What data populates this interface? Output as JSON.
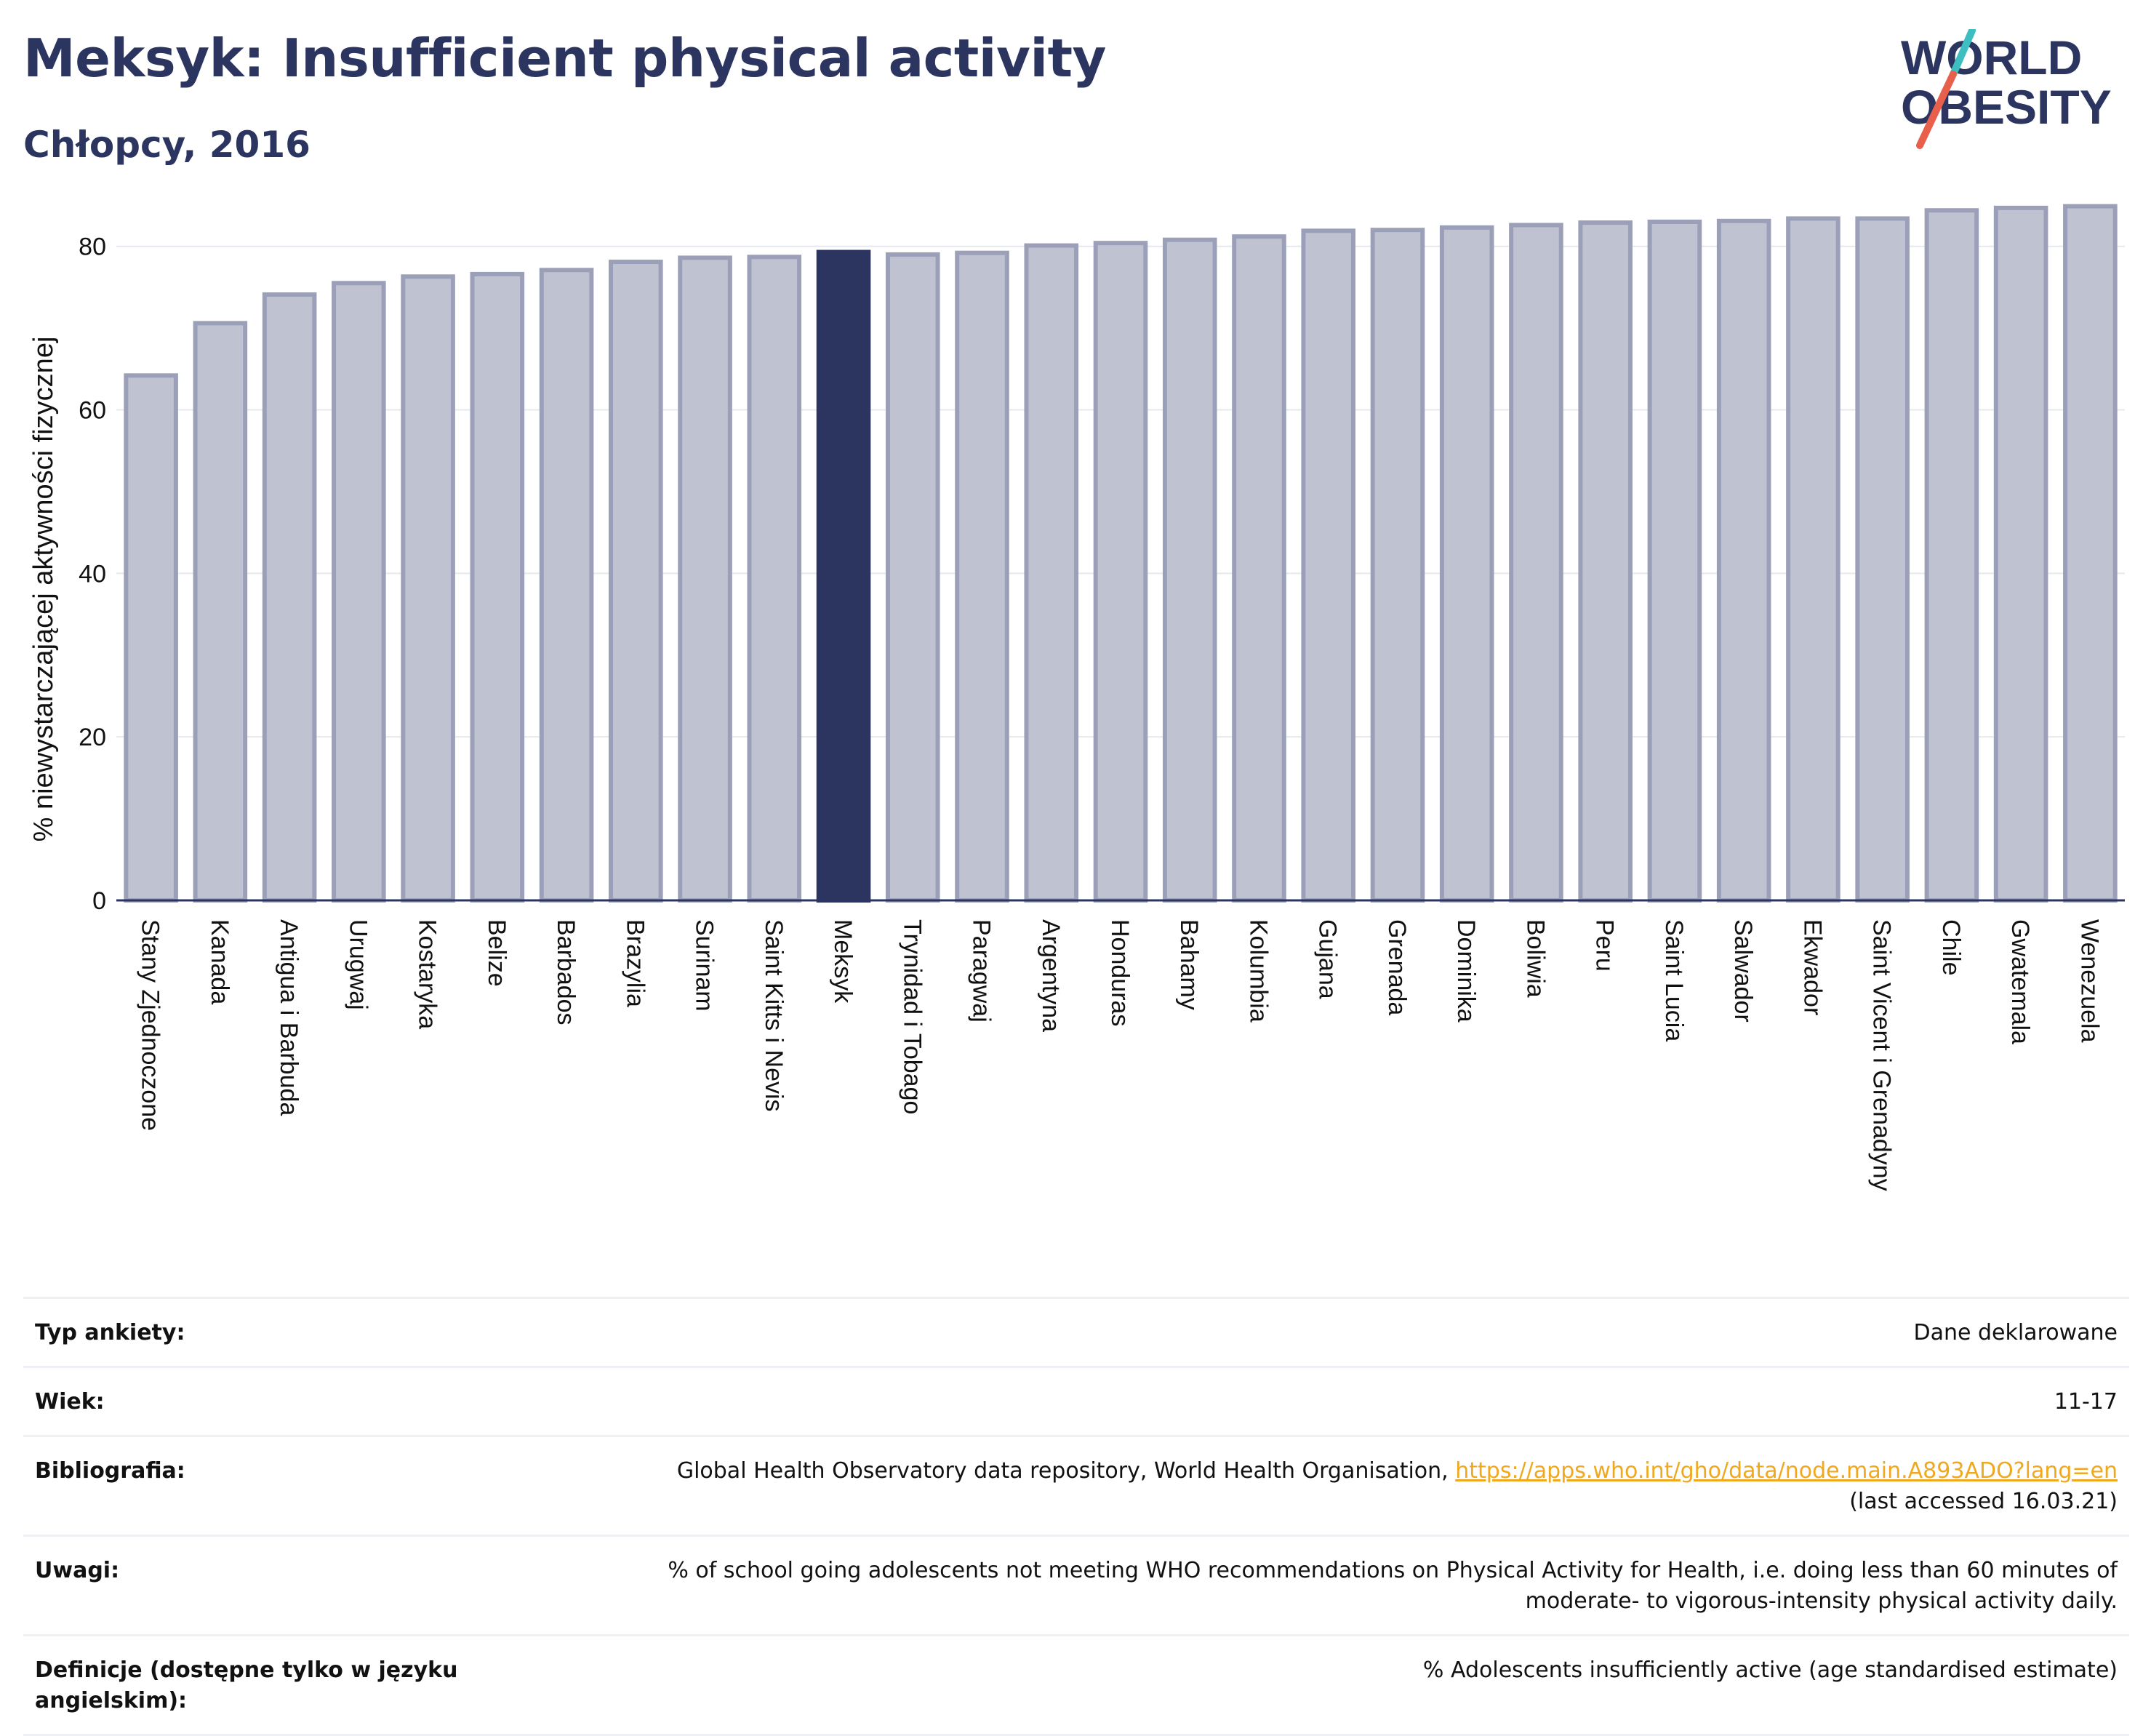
{
  "title": "Meksyk: Insufficient physical activity",
  "subtitle": "Chłopcy, 2016",
  "logo": {
    "line1": "WORLD",
    "line2": "OBESITY",
    "accent_colors": [
      "#e8604c",
      "#3dbfc2"
    ]
  },
  "colors": {
    "highlight": "#2b3560",
    "bar": "#bfc3d1",
    "bar_edge": "#9ba0b8",
    "axis": "#2b3560"
  },
  "chart_data": {
    "type": "bar",
    "ylabel": "% niewystarczającej aktywności fizycznej",
    "ylim": [
      0,
      87
    ],
    "yticks": [
      0,
      20,
      40,
      60,
      80
    ],
    "grid": true,
    "highlight_category": "Meksyk",
    "categories": [
      "Stany Zjednoczone",
      "Kanada",
      "Antigua i Barbuda",
      "Urugwaj",
      "Kostaryka",
      "Belize",
      "Barbados",
      "Brazylia",
      "Surinam",
      "Saint Kitts i Nevis",
      "Meksyk",
      "Trynidad i Tobago",
      "Paragwaj",
      "Argentyna",
      "Honduras",
      "Bahamy",
      "Kolumbia",
      "Gujana",
      "Grenada",
      "Dominika",
      "Boliwia",
      "Peru",
      "Saint Lucia",
      "Salwador",
      "Ekwador",
      "Saint Vicent i Grenadyny",
      "Chile",
      "Gwatemala",
      "Wenezuela"
    ],
    "values": [
      64.2,
      70.6,
      74.1,
      75.5,
      76.3,
      76.6,
      77.1,
      78.1,
      78.6,
      78.7,
      79.3,
      79.0,
      79.2,
      80.1,
      80.4,
      80.8,
      81.2,
      81.9,
      82.0,
      82.3,
      82.6,
      82.9,
      83.0,
      83.1,
      83.4,
      83.4,
      84.4,
      84.7,
      84.9
    ]
  },
  "info": {
    "rows": [
      {
        "label": "Typ ankiety:",
        "value": "Dane deklarowane"
      },
      {
        "label": "Wiek:",
        "value": "11-17"
      },
      {
        "label": "Bibliografia:",
        "value": "Global Health Observatory data repository, World Health Organisation,",
        "link": "https://apps.who.int/gho/data/node.main.A893ADO?lang=en",
        "value2": "(last accessed 16.03.21)"
      },
      {
        "label": "Uwagi:",
        "value": "% of school going adolescents not meeting WHO recommendations on Physical Activity for Health, i.e. doing less than 60 minutes of",
        "value2": "moderate- to vigorous-intensity physical activity daily."
      },
      {
        "label": "Definicje (dostępne tylko w języku angielskim):",
        "value": "% Adolescents insufficiently active (age standardised estimate)"
      }
    ]
  }
}
